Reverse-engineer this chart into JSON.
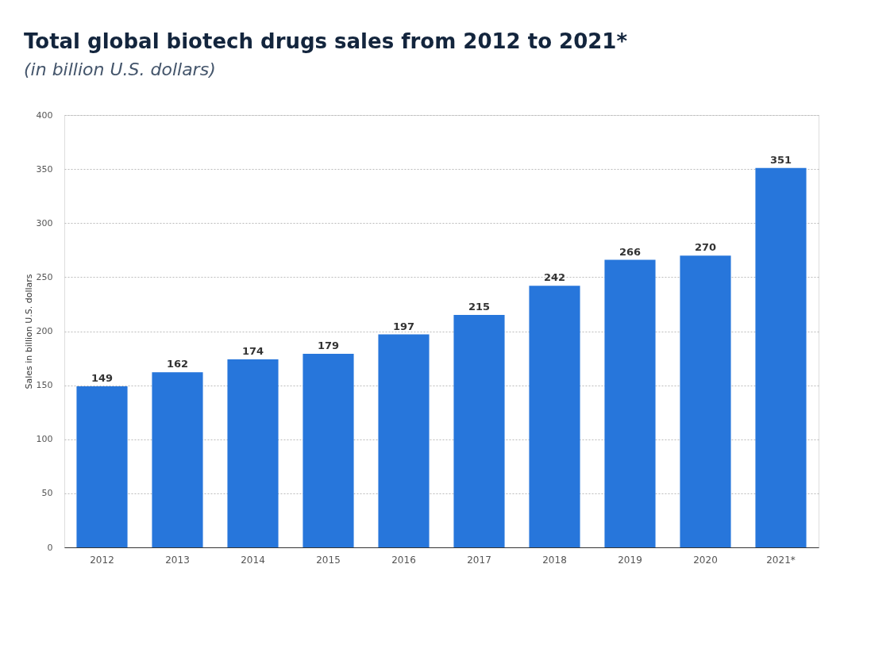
{
  "chart_data": {
    "type": "bar",
    "title": "Total global biotech drugs sales from 2012 to 2021*",
    "subtitle": "(in billion U.S. dollars)",
    "ylabel": "Sales in billion U.S. dollars",
    "categories": [
      "2012",
      "2013",
      "2014",
      "2015",
      "2016",
      "2017",
      "2018",
      "2019",
      "2020",
      "2021*"
    ],
    "values": [
      149,
      162,
      174,
      179,
      197,
      215,
      242,
      266,
      270,
      351
    ],
    "color": "#2776db",
    "ylim": [
      0,
      400
    ],
    "yticks": [
      0,
      50,
      100,
      150,
      200,
      250,
      300,
      350,
      400
    ],
    "grid": "y",
    "data_labels": true
  }
}
